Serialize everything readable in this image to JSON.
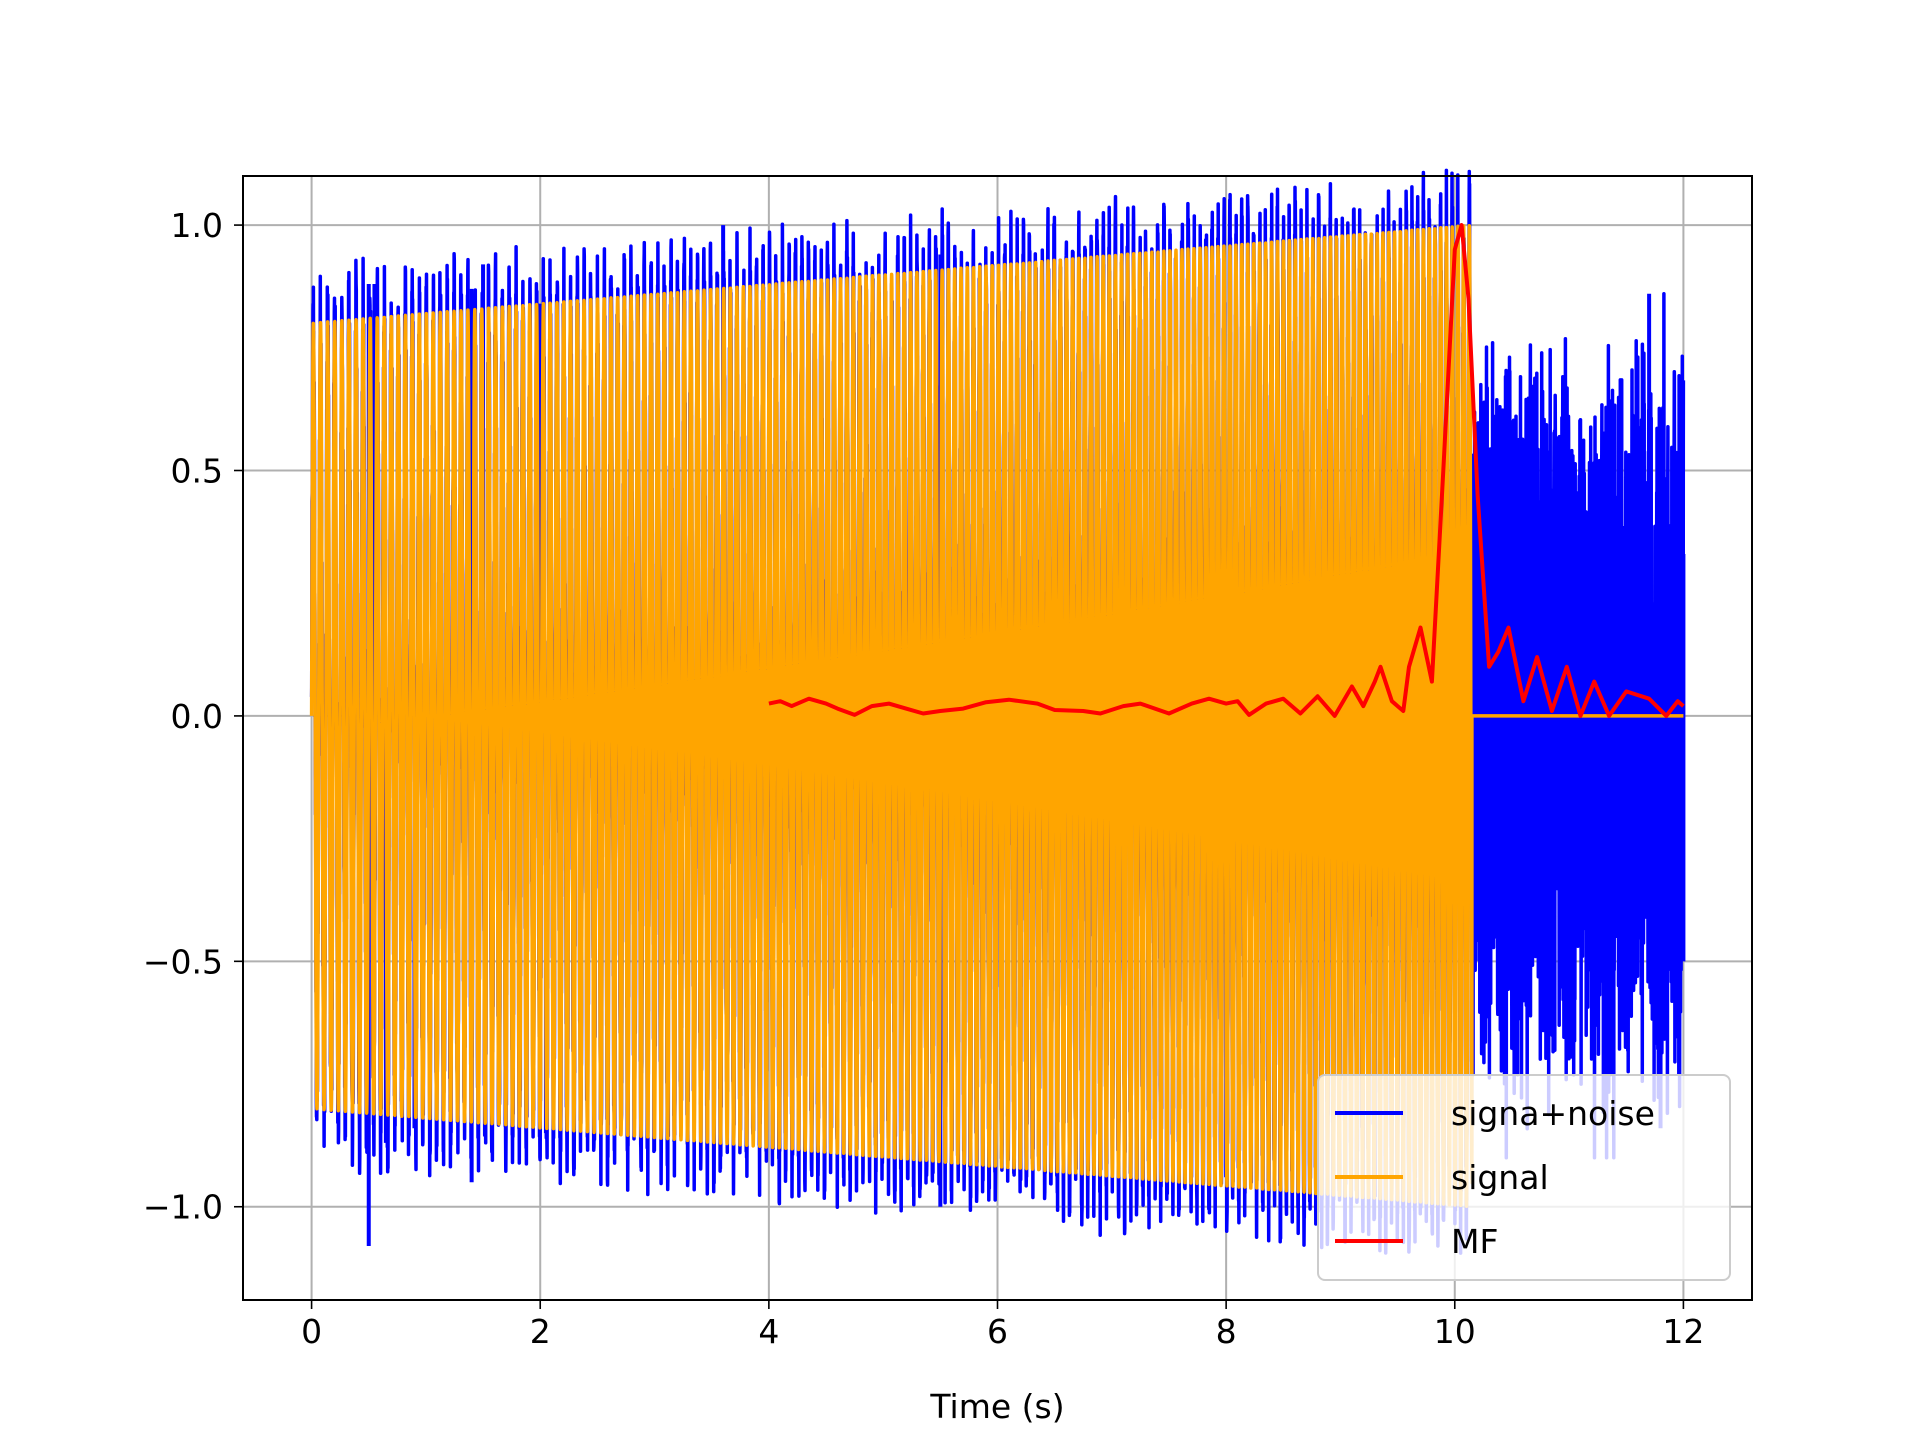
{
  "chart_data": {
    "type": "line",
    "title": "",
    "xlabel": "Time (s)",
    "ylabel": "",
    "xlim": [
      -0.6,
      12.6
    ],
    "ylim": [
      -1.19,
      1.1
    ],
    "xticks": [
      0,
      2,
      4,
      6,
      8,
      10,
      12
    ],
    "xtick_labels": [
      "0",
      "2",
      "4",
      "6",
      "8",
      "10",
      "12"
    ],
    "yticks": [
      -1.0,
      -0.5,
      0.0,
      0.5,
      1.0
    ],
    "ytick_labels": [
      "−1.0",
      "−0.5",
      "0.0",
      "0.5",
      "1.0"
    ],
    "grid": true,
    "legend_position": "lower-right",
    "series": [
      {
        "name": "signa+noise",
        "color": "#0000ff",
        "description": "chirp signal plus impulsive noise, 0 to 12 s",
        "x_range": [
          0,
          12
        ],
        "noise_spikes": [
          [
            0.5,
            0.88
          ],
          [
            0.5,
            -1.08
          ],
          [
            0.55,
            0.88
          ],
          [
            0.65,
            -0.87
          ],
          [
            0.9,
            -0.84
          ],
          [
            1.4,
            0.87
          ],
          [
            1.4,
            -0.95
          ],
          [
            1.5,
            0.92
          ],
          [
            2.0,
            0.84
          ],
          [
            2.05,
            -0.85
          ],
          [
            3.6,
            1.0
          ],
          [
            5.5,
            0.94
          ],
          [
            5.5,
            -1.0
          ],
          [
            8.0,
            -0.94
          ],
          [
            9.3,
            -0.98
          ],
          [
            11.7,
            0.86
          ],
          [
            11.8,
            -0.84
          ],
          [
            12.0,
            0.33
          ],
          [
            12.0,
            -0.5
          ]
        ]
      },
      {
        "name": "signal",
        "color": "#ffa500",
        "description": "linear chirp 0 to 10.15 s, envelope 0.8 to 1.0, then zero",
        "x_range": [
          0,
          12
        ],
        "envelope": [
          [
            0,
            0.8
          ],
          [
            10.15,
            1.0
          ]
        ],
        "end_time": 10.15
      },
      {
        "name": "MF",
        "color": "#ff0000",
        "description": "matched filter output, 4 to 12 s, peak at 10.06 s",
        "x_range": [
          4,
          12
        ],
        "points": [
          [
            4.0,
            0.025
          ],
          [
            4.1,
            0.03
          ],
          [
            4.2,
            0.02
          ],
          [
            4.35,
            0.035
          ],
          [
            4.5,
            0.025
          ],
          [
            4.6,
            0.015
          ],
          [
            4.75,
            0.002
          ],
          [
            4.9,
            0.02
          ],
          [
            5.05,
            0.025
          ],
          [
            5.2,
            0.015
          ],
          [
            5.35,
            0.005
          ],
          [
            5.5,
            0.01
          ],
          [
            5.7,
            0.015
          ],
          [
            5.9,
            0.028
          ],
          [
            6.1,
            0.033
          ],
          [
            6.35,
            0.025
          ],
          [
            6.5,
            0.012
          ],
          [
            6.75,
            0.01
          ],
          [
            6.9,
            0.005
          ],
          [
            7.1,
            0.02
          ],
          [
            7.25,
            0.025
          ],
          [
            7.5,
            0.005
          ],
          [
            7.7,
            0.025
          ],
          [
            7.85,
            0.035
          ],
          [
            8.0,
            0.025
          ],
          [
            8.1,
            0.03
          ],
          [
            8.2,
            0.002
          ],
          [
            8.35,
            0.025
          ],
          [
            8.5,
            0.035
          ],
          [
            8.65,
            0.005
          ],
          [
            8.8,
            0.04
          ],
          [
            8.95,
            0.0
          ],
          [
            9.1,
            0.06
          ],
          [
            9.2,
            0.02
          ],
          [
            9.3,
            0.07
          ],
          [
            9.35,
            0.1
          ],
          [
            9.45,
            0.03
          ],
          [
            9.55,
            0.01
          ],
          [
            9.6,
            0.1
          ],
          [
            9.7,
            0.18
          ],
          [
            9.8,
            0.07
          ],
          [
            9.9,
            0.5
          ],
          [
            10.0,
            0.95
          ],
          [
            10.06,
            1.0
          ],
          [
            10.12,
            0.85
          ],
          [
            10.2,
            0.45
          ],
          [
            10.3,
            0.1
          ],
          [
            10.38,
            0.13
          ],
          [
            10.47,
            0.18
          ],
          [
            10.6,
            0.03
          ],
          [
            10.72,
            0.12
          ],
          [
            10.85,
            0.01
          ],
          [
            10.98,
            0.1
          ],
          [
            11.1,
            0.0
          ],
          [
            11.22,
            0.07
          ],
          [
            11.35,
            0.0
          ],
          [
            11.5,
            0.05
          ],
          [
            11.7,
            0.035
          ],
          [
            11.85,
            0.0
          ],
          [
            11.95,
            0.03
          ],
          [
            12.0,
            0.02
          ]
        ]
      }
    ]
  }
}
